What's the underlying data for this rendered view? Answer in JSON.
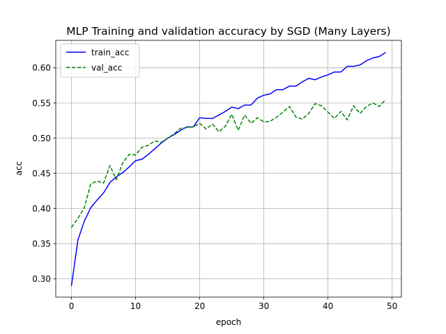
{
  "chart_data": {
    "type": "line",
    "title": "MLP Training and validation accuracy by SGD (Many Layers)",
    "xlabel": "epoch",
    "ylabel": "acc",
    "xlim": [
      -2.45,
      51.45
    ],
    "ylim": [
      0.274,
      0.639
    ],
    "xticks": [
      0,
      10,
      20,
      30,
      40,
      50
    ],
    "yticks": [
      0.3,
      0.35,
      0.4,
      0.45,
      0.5,
      0.55,
      0.6
    ],
    "xtick_labels": [
      "0",
      "10",
      "20",
      "30",
      "40",
      "50"
    ],
    "ytick_labels": [
      "0.30",
      "0.35",
      "0.40",
      "0.45",
      "0.50",
      "0.55",
      "0.60"
    ],
    "grid": true,
    "legend_position": "top-left",
    "x": [
      0,
      1,
      2,
      3,
      4,
      5,
      6,
      7,
      8,
      9,
      10,
      11,
      12,
      13,
      14,
      15,
      16,
      17,
      18,
      19,
      20,
      21,
      22,
      23,
      24,
      25,
      26,
      27,
      28,
      29,
      30,
      31,
      32,
      33,
      34,
      35,
      36,
      37,
      38,
      39,
      40,
      41,
      42,
      43,
      44,
      45,
      46,
      47,
      48,
      49
    ],
    "series": [
      {
        "name": "train_acc",
        "color": "#0000ff",
        "dash": "solid",
        "values": [
          0.29,
          0.355,
          0.382,
          0.401,
          0.412,
          0.422,
          0.437,
          0.445,
          0.451,
          0.459,
          0.468,
          0.47,
          0.477,
          0.485,
          0.493,
          0.5,
          0.505,
          0.511,
          0.516,
          0.516,
          0.529,
          0.528,
          0.528,
          0.533,
          0.538,
          0.544,
          0.542,
          0.547,
          0.547,
          0.557,
          0.561,
          0.563,
          0.569,
          0.569,
          0.574,
          0.574,
          0.58,
          0.585,
          0.583,
          0.587,
          0.59,
          0.594,
          0.594,
          0.602,
          0.602,
          0.604,
          0.61,
          0.614,
          0.616,
          0.622
        ]
      },
      {
        "name": "val_acc",
        "color": "#008000",
        "dash": "dashed",
        "values": [
          0.373,
          0.386,
          0.401,
          0.435,
          0.439,
          0.436,
          0.461,
          0.441,
          0.465,
          0.477,
          0.476,
          0.487,
          0.49,
          0.496,
          0.494,
          0.5,
          0.506,
          0.514,
          0.515,
          0.516,
          0.521,
          0.513,
          0.52,
          0.509,
          0.517,
          0.534,
          0.511,
          0.533,
          0.521,
          0.529,
          0.523,
          0.524,
          0.53,
          0.537,
          0.545,
          0.53,
          0.527,
          0.535,
          0.549,
          0.546,
          0.537,
          0.528,
          0.538,
          0.526,
          0.546,
          0.535,
          0.545,
          0.55,
          0.545,
          0.555
        ]
      }
    ]
  }
}
